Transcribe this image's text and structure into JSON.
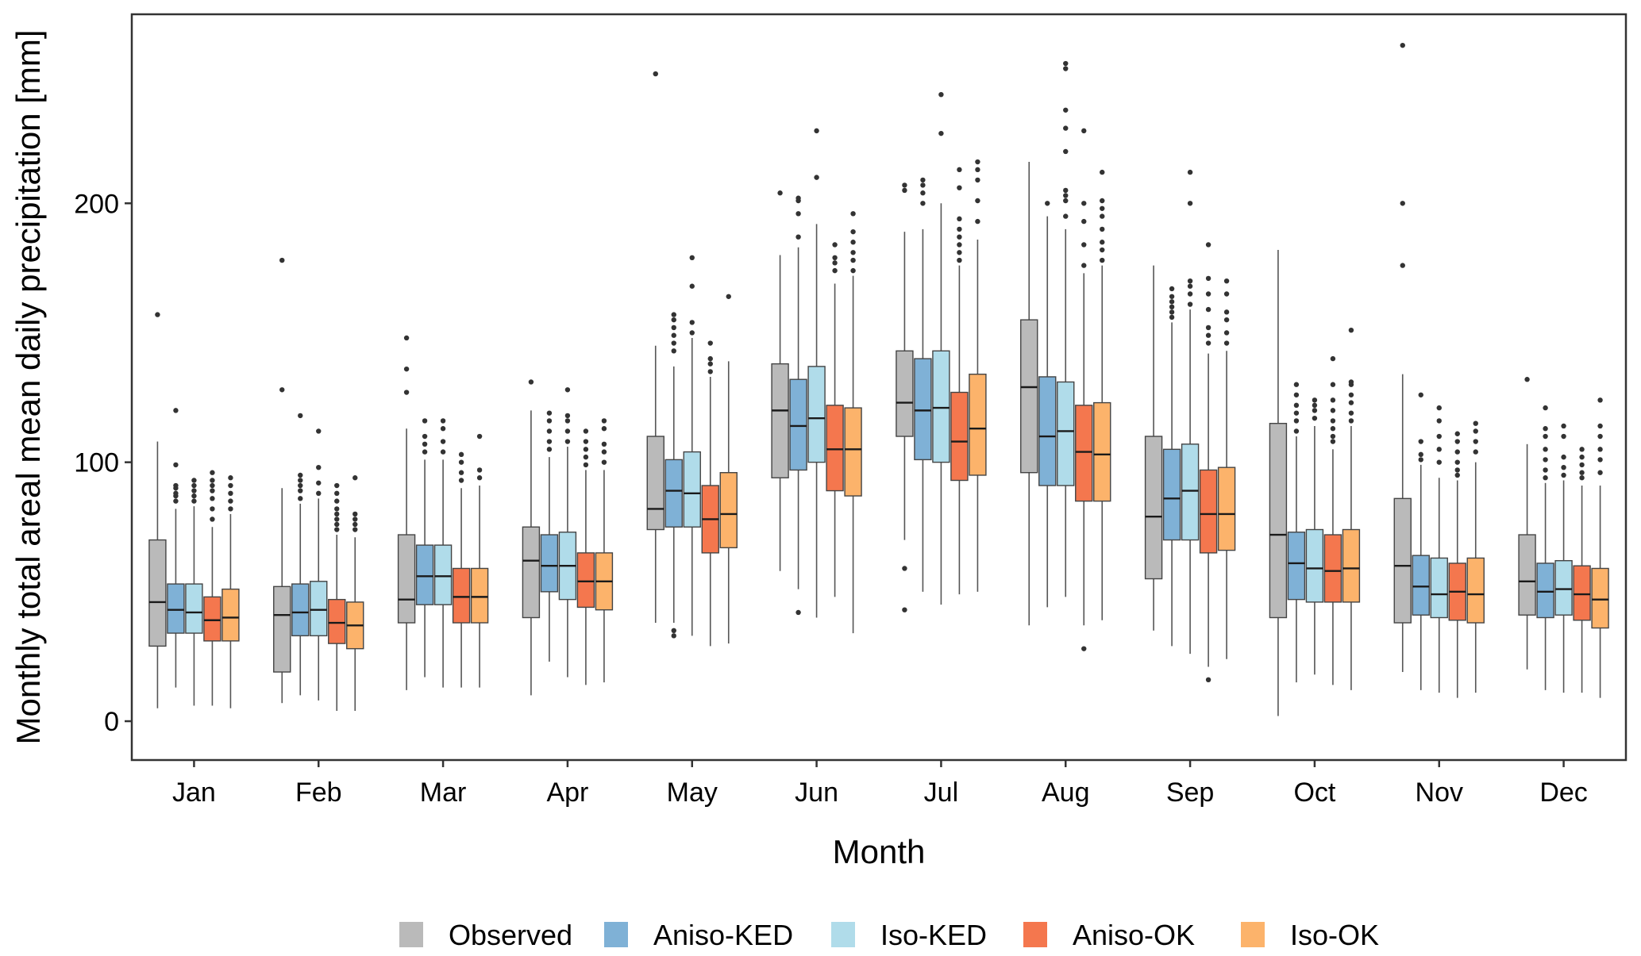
{
  "chart_data": {
    "type": "boxplot",
    "title": "",
    "xlabel": "Month",
    "ylabel": "Monthly total areal mean daily precipitation [mm]",
    "ylim": [
      -15,
      273
    ],
    "yticks": [
      0,
      100,
      200
    ],
    "grid": false,
    "legend_position": "bottom",
    "categories": [
      "Jan",
      "Feb",
      "Mar",
      "Apr",
      "May",
      "Jun",
      "Jul",
      "Aug",
      "Sep",
      "Oct",
      "Nov",
      "Dec"
    ],
    "series": [
      {
        "name": "Observed",
        "color": "#BABABA",
        "boxes": [
          {
            "min": 5,
            "q1": 29,
            "median": 46,
            "q3": 70,
            "max": 108,
            "outliers": [
              157
            ]
          },
          {
            "min": 7,
            "q1": 19,
            "median": 41,
            "q3": 52,
            "max": 90,
            "outliers": [
              128,
              178
            ]
          },
          {
            "min": 12,
            "q1": 38,
            "median": 47,
            "q3": 72,
            "max": 113,
            "outliers": [
              127,
              136,
              148
            ]
          },
          {
            "min": 10,
            "q1": 40,
            "median": 62,
            "q3": 75,
            "max": 120,
            "outliers": [
              131
            ]
          },
          {
            "min": 38,
            "q1": 74,
            "median": 82,
            "q3": 110,
            "max": 145,
            "outliers": [
              250
            ]
          },
          {
            "min": 58,
            "q1": 94,
            "median": 120,
            "q3": 138,
            "max": 180,
            "outliers": [
              204
            ]
          },
          {
            "min": 70,
            "q1": 110,
            "median": 123,
            "q3": 143,
            "max": 189,
            "outliers": [
              43,
              59,
              205,
              207
            ]
          },
          {
            "min": 37,
            "q1": 96,
            "median": 129,
            "q3": 155,
            "max": 216,
            "outliers": []
          },
          {
            "min": 35,
            "q1": 55,
            "median": 79,
            "q3": 110,
            "max": 176,
            "outliers": []
          },
          {
            "min": 2,
            "q1": 40,
            "median": 72,
            "q3": 115,
            "max": 182,
            "outliers": []
          },
          {
            "min": 19,
            "q1": 38,
            "median": 60,
            "q3": 86,
            "max": 134,
            "outliers": [
              176,
              200,
              261
            ]
          },
          {
            "min": 20,
            "q1": 41,
            "median": 54,
            "q3": 72,
            "max": 107,
            "outliers": [
              132
            ]
          }
        ]
      },
      {
        "name": "Aniso-KED",
        "color": "#7FB1D6",
        "boxes": [
          {
            "min": 13,
            "q1": 34,
            "median": 43,
            "q3": 53,
            "max": 82,
            "outliers": [
              85,
              87,
              88,
              90,
              91,
              99,
              120
            ]
          },
          {
            "min": 10,
            "q1": 33,
            "median": 42,
            "q3": 53,
            "max": 84,
            "outliers": [
              86,
              89,
              91,
              93,
              95,
              118
            ]
          },
          {
            "min": 17,
            "q1": 45,
            "median": 56,
            "q3": 68,
            "max": 101,
            "outliers": [
              104,
              107,
              110,
              116
            ]
          },
          {
            "min": 23,
            "q1": 50,
            "median": 60,
            "q3": 72,
            "max": 102,
            "outliers": [
              105,
              108,
              112,
              116,
              119
            ]
          },
          {
            "min": 38,
            "q1": 75,
            "median": 89,
            "q3": 101,
            "max": 137,
            "outliers": [
              33,
              35,
              143,
              146,
              149,
              152,
              155,
              157
            ]
          },
          {
            "min": 51,
            "q1": 97,
            "median": 114,
            "q3": 132,
            "max": 183,
            "outliers": [
              42,
              187,
              196,
              201,
              202
            ]
          },
          {
            "min": 50,
            "q1": 101,
            "median": 120,
            "q3": 140,
            "max": 190,
            "outliers": [
              200,
              204,
              207,
              209
            ]
          },
          {
            "min": 44,
            "q1": 91,
            "median": 110,
            "q3": 133,
            "max": 195,
            "outliers": [
              200
            ]
          },
          {
            "min": 29,
            "q1": 70,
            "median": 86,
            "q3": 105,
            "max": 154,
            "outliers": [
              156,
              158,
              160,
              162,
              164,
              167
            ]
          },
          {
            "min": 15,
            "q1": 47,
            "median": 61,
            "q3": 73,
            "max": 110,
            "outliers": [
              112,
              116,
              119,
              122,
              126,
              130
            ]
          },
          {
            "min": 12,
            "q1": 41,
            "median": 52,
            "q3": 64,
            "max": 99,
            "outliers": [
              101,
              103,
              108,
              126
            ]
          },
          {
            "min": 12,
            "q1": 40,
            "median": 50,
            "q3": 61,
            "max": 92,
            "outliers": [
              94,
              97,
              101,
              105,
              110,
              113,
              121
            ]
          }
        ]
      },
      {
        "name": "Iso-KED",
        "color": "#B0DCEA",
        "boxes": [
          {
            "min": 6,
            "q1": 34,
            "median": 42,
            "q3": 53,
            "max": 83,
            "outliers": [
              85,
              87,
              89,
              91,
              93
            ]
          },
          {
            "min": 8,
            "q1": 33,
            "median": 43,
            "q3": 54,
            "max": 86,
            "outliers": [
              88,
              92,
              98,
              112
            ]
          },
          {
            "min": 13,
            "q1": 45,
            "median": 56,
            "q3": 68,
            "max": 101,
            "outliers": [
              104,
              108,
              113,
              116
            ]
          },
          {
            "min": 17,
            "q1": 47,
            "median": 60,
            "q3": 73,
            "max": 106,
            "outliers": [
              108,
              112,
              116,
              118,
              128
            ]
          },
          {
            "min": 33,
            "q1": 75,
            "median": 88,
            "q3": 104,
            "max": 148,
            "outliers": [
              150,
              154,
              168,
              179
            ]
          },
          {
            "min": 40,
            "q1": 100,
            "median": 117,
            "q3": 137,
            "max": 192,
            "outliers": [
              228,
              210
            ]
          },
          {
            "min": 45,
            "q1": 100,
            "median": 121,
            "q3": 143,
            "max": 200,
            "outliers": [
              227,
              242
            ]
          },
          {
            "min": 48,
            "q1": 91,
            "median": 112,
            "q3": 131,
            "max": 190,
            "outliers": [
              195,
              201,
              203,
              205,
              220,
              229,
              236,
              252,
              254
            ]
          },
          {
            "min": 26,
            "q1": 70,
            "median": 89,
            "q3": 107,
            "max": 159,
            "outliers": [
              161,
              165,
              168,
              170,
              200,
              212
            ]
          },
          {
            "min": 18,
            "q1": 46,
            "median": 59,
            "q3": 74,
            "max": 114,
            "outliers": [
              117,
              120,
              122,
              124
            ]
          },
          {
            "min": 11,
            "q1": 40,
            "median": 49,
            "q3": 63,
            "max": 94,
            "outliers": [
              100,
              105,
              110,
              116,
              121
            ]
          },
          {
            "min": 11,
            "q1": 41,
            "median": 51,
            "q3": 62,
            "max": 93,
            "outliers": [
              95,
              98,
              102,
              110,
              114
            ]
          }
        ]
      },
      {
        "name": "Aniso-OK",
        "color": "#F4774E",
        "boxes": [
          {
            "min": 6,
            "q1": 31,
            "median": 39,
            "q3": 48,
            "max": 75,
            "outliers": [
              78,
              82,
              86,
              89,
              91,
              93,
              96
            ]
          },
          {
            "min": 4,
            "q1": 30,
            "median": 38,
            "q3": 47,
            "max": 72,
            "outliers": [
              74,
              76,
              78,
              80,
              82,
              85,
              88,
              91
            ]
          },
          {
            "min": 13,
            "q1": 38,
            "median": 48,
            "q3": 59,
            "max": 90,
            "outliers": [
              93,
              96,
              100,
              103
            ]
          },
          {
            "min": 14,
            "q1": 44,
            "median": 54,
            "q3": 65,
            "max": 97,
            "outliers": [
              99,
              102,
              105,
              108,
              112
            ]
          },
          {
            "min": 29,
            "q1": 65,
            "median": 78,
            "q3": 91,
            "max": 133,
            "outliers": [
              135,
              138,
              140,
              146
            ]
          },
          {
            "min": 48,
            "q1": 89,
            "median": 105,
            "q3": 122,
            "max": 169,
            "outliers": [
              174,
              177,
              179,
              184
            ]
          },
          {
            "min": 49,
            "q1": 93,
            "median": 108,
            "q3": 127,
            "max": 176,
            "outliers": [
              178,
              181,
              184,
              187,
              190,
              194,
              206,
              213
            ]
          },
          {
            "min": 37,
            "q1": 85,
            "median": 104,
            "q3": 122,
            "max": 173,
            "outliers": [
              28,
              176,
              184,
              193,
              200,
              228
            ]
          },
          {
            "min": 21,
            "q1": 65,
            "median": 80,
            "q3": 97,
            "max": 142,
            "outliers": [
              16,
              146,
              149,
              152,
              159,
              165,
              171,
              184
            ]
          },
          {
            "min": 14,
            "q1": 46,
            "median": 58,
            "q3": 72,
            "max": 105,
            "outliers": [
              108,
              110,
              113,
              116,
              120,
              124,
              130,
              140
            ]
          },
          {
            "min": 9,
            "q1": 39,
            "median": 50,
            "q3": 61,
            "max": 93,
            "outliers": [
              95,
              97,
              100,
              104,
              108,
              111
            ]
          },
          {
            "min": 11,
            "q1": 39,
            "median": 49,
            "q3": 60,
            "max": 91,
            "outliers": [
              94,
              96,
              99,
              102,
              105
            ]
          }
        ]
      },
      {
        "name": "Iso-OK",
        "color": "#FCB36B",
        "boxes": [
          {
            "min": 5,
            "q1": 31,
            "median": 40,
            "q3": 51,
            "max": 80,
            "outliers": [
              82,
              85,
              88,
              91,
              94
            ]
          },
          {
            "min": 4,
            "q1": 28,
            "median": 37,
            "q3": 46,
            "max": 71,
            "outliers": [
              74,
              76,
              78,
              80,
              94
            ]
          },
          {
            "min": 13,
            "q1": 38,
            "median": 48,
            "q3": 59,
            "max": 91,
            "outliers": [
              94,
              97,
              110
            ]
          },
          {
            "min": 15,
            "q1": 43,
            "median": 54,
            "q3": 65,
            "max": 97,
            "outliers": [
              100,
              104,
              107,
              113,
              116
            ]
          },
          {
            "min": 30,
            "q1": 67,
            "median": 80,
            "q3": 96,
            "max": 139,
            "outliers": [
              164
            ]
          },
          {
            "min": 34,
            "q1": 87,
            "median": 105,
            "q3": 121,
            "max": 172,
            "outliers": [
              174,
              178,
              181,
              185,
              189,
              196
            ]
          },
          {
            "min": 50,
            "q1": 95,
            "median": 113,
            "q3": 134,
            "max": 186,
            "outliers": [
              193,
              201,
              209,
              213,
              216
            ]
          },
          {
            "min": 39,
            "q1": 85,
            "median": 103,
            "q3": 123,
            "max": 176,
            "outliers": [
              178,
              182,
              185,
              190,
              195,
              198,
              201,
              212
            ]
          },
          {
            "min": 24,
            "q1": 66,
            "median": 80,
            "q3": 98,
            "max": 143,
            "outliers": [
              146,
              150,
              155,
              158,
              165,
              170
            ]
          },
          {
            "min": 12,
            "q1": 46,
            "median": 59,
            "q3": 74,
            "max": 114,
            "outliers": [
              116,
              119,
              123,
              126,
              130,
              131,
              151
            ]
          },
          {
            "min": 11,
            "q1": 38,
            "median": 49,
            "q3": 63,
            "max": 100,
            "outliers": [
              104,
              108,
              112,
              115
            ]
          },
          {
            "min": 9,
            "q1": 36,
            "median": 47,
            "q3": 59,
            "max": 91,
            "outliers": [
              96,
              101,
              105,
              110,
              114,
              124
            ]
          }
        ]
      }
    ]
  }
}
